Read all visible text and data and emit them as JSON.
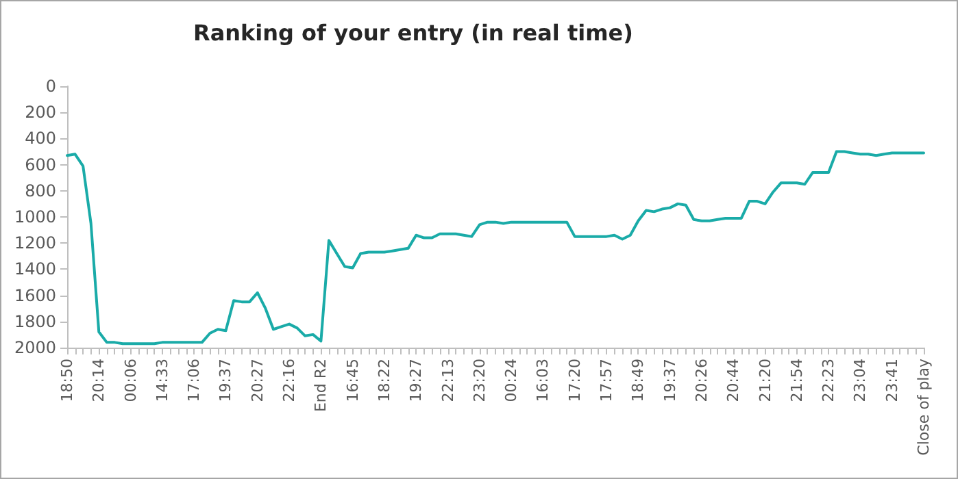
{
  "chart_data": {
    "type": "line",
    "title": "Ranking of your entry (in real time)",
    "categories": [
      "18:50",
      null,
      null,
      null,
      "20:14",
      null,
      null,
      null,
      "00:06",
      null,
      null,
      null,
      "14:33",
      null,
      null,
      null,
      "17:06",
      null,
      null,
      null,
      "19:37",
      null,
      null,
      null,
      "20:27",
      null,
      null,
      null,
      "22:16",
      null,
      null,
      null,
      "End R2",
      null,
      null,
      null,
      "16:45",
      null,
      null,
      null,
      "18:22",
      null,
      null,
      null,
      "19:27",
      null,
      null,
      null,
      "22:13",
      null,
      null,
      null,
      "23:20",
      null,
      null,
      null,
      "00:24",
      null,
      null,
      null,
      "16:03",
      null,
      null,
      null,
      "17:20",
      null,
      null,
      null,
      "17:57",
      null,
      null,
      null,
      "18:49",
      null,
      null,
      null,
      "19:37",
      null,
      null,
      null,
      "20:26",
      null,
      null,
      null,
      "20:44",
      null,
      null,
      null,
      "21:20",
      null,
      null,
      null,
      "21:54",
      null,
      null,
      null,
      "22:23",
      null,
      null,
      null,
      "23:04",
      null,
      null,
      null,
      "23:41",
      null,
      null,
      null,
      "Close of play"
    ],
    "series": [
      {
        "color": "#1aaba8",
        "values": [
          530,
          520,
          610,
          1050,
          1880,
          1960,
          1960,
          1970,
          1970,
          1970,
          1970,
          1970,
          1960,
          1960,
          1960,
          1960,
          1960,
          1960,
          1890,
          1860,
          1870,
          1640,
          1650,
          1650,
          1580,
          1700,
          1860,
          1840,
          1820,
          1850,
          1910,
          1900,
          1950,
          1180,
          1280,
          1380,
          1390,
          1280,
          1270,
          1270,
          1270,
          1260,
          1250,
          1240,
          1140,
          1160,
          1160,
          1130,
          1130,
          1130,
          1140,
          1150,
          1060,
          1040,
          1040,
          1050,
          1040,
          1040,
          1040,
          1040,
          1040,
          1040,
          1040,
          1040,
          1150,
          1150,
          1150,
          1150,
          1150,
          1140,
          1170,
          1140,
          1030,
          950,
          960,
          940,
          930,
          900,
          910,
          1020,
          1030,
          1030,
          1020,
          1010,
          1010,
          1010,
          880,
          880,
          900,
          810,
          740,
          740,
          740,
          750,
          660,
          660,
          660,
          500,
          500,
          510,
          520,
          520,
          530,
          520,
          510,
          510,
          510,
          510,
          510
        ]
      }
    ],
    "ylim": [
      2000,
      0
    ],
    "yticks": [
      0,
      200,
      400,
      600,
      800,
      1000,
      1200,
      1400,
      1600,
      1800,
      2000
    ],
    "grid": false,
    "marker": "none",
    "line_style": "solid"
  }
}
